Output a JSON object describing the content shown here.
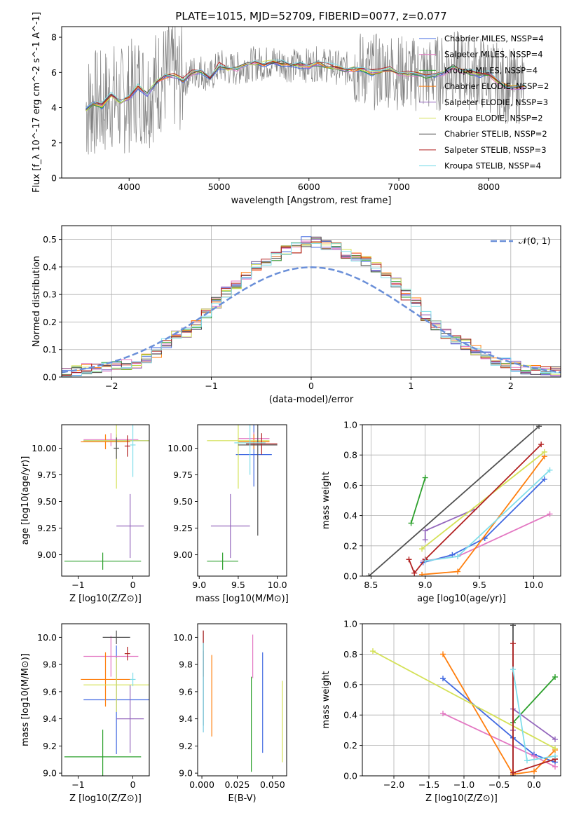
{
  "figure": {
    "title": "PLATE=1015, MJD=52709, FIBERID=0077, z=0.077"
  },
  "legend_entries": [
    {
      "label": "Chabrier MILES, N$_{SSP}$=4",
      "color": "#4169e1"
    },
    {
      "label": "Salpeter MILES, N$_{SSP}$=4",
      "color": "#e377c2"
    },
    {
      "label": "Kroupa MILES, N$_{SSP}$=4",
      "color": "#2ca02c"
    },
    {
      "label": "Chabrier ELODIE, N$_{SSP}$=2",
      "color": "#ff7f0e"
    },
    {
      "label": "Salpeter ELODIE, N$_{SSP}$=3",
      "color": "#9467bd"
    },
    {
      "label": "Kroupa ELODIE, N$_{SSP}$=2",
      "color": "#d4e157"
    },
    {
      "label": "Chabrier STELIB, N$_{SSP}$=2",
      "color": "#505050"
    },
    {
      "label": "Salpeter STELIB, N$_{SSP}$=3",
      "color": "#b22222"
    },
    {
      "label": "Kroupa STELIB, N$_{SSP}$=4",
      "color": "#80deea"
    }
  ],
  "chart_data": [
    {
      "id": "spectrum",
      "type": "line",
      "xlabel": "wavelength [Angstrom, rest frame]",
      "ylabel": "Flux [f_λ 10^-17 erg cm^-2 s^-1 A^-1]",
      "xlim": [
        3250,
        8800
      ],
      "ylim": [
        0,
        8.6
      ],
      "xticks": [
        4000,
        5000,
        6000,
        7000,
        8000
      ],
      "yticks": [
        0,
        2,
        4,
        6,
        8
      ],
      "grid": false,
      "legend_position": "upper right",
      "x": [
        3520,
        3600,
        3700,
        3800,
        3900,
        4000,
        4100,
        4200,
        4300,
        4400,
        4500,
        4600,
        4700,
        4800,
        4900,
        5000,
        5100,
        5200,
        5300,
        5400,
        5500,
        5600,
        5700,
        5800,
        5900,
        6000,
        6100,
        6200,
        6300,
        6400,
        6500,
        6600,
        6700,
        6800,
        6900,
        7000,
        7100,
        7200,
        7300,
        7400,
        7500,
        7600,
        7700,
        7800,
        7900,
        8000,
        8100,
        8200,
        8300,
        8400
      ],
      "model_y": [
        3.9,
        4.3,
        4.1,
        4.7,
        4.3,
        4.6,
        5.2,
        4.7,
        5.4,
        5.8,
        5.8,
        5.5,
        6.0,
        6.1,
        5.7,
        6.4,
        6.2,
        6.2,
        6.4,
        6.5,
        6.5,
        6.6,
        6.5,
        6.4,
        6.4,
        6.4,
        6.5,
        6.4,
        6.3,
        6.2,
        6.2,
        6.2,
        6.0,
        6.1,
        6.2,
        6.0,
        5.9,
        5.9,
        5.8,
        5.9,
        6.0,
        6.3,
        6.1,
        6.0,
        5.9,
        5.9,
        5.5,
        5.2,
        5.2,
        5.2
      ]
    },
    {
      "id": "residuals",
      "type": "histogram",
      "xlabel": "(data-model)/error",
      "ylabel": "Normed distribution",
      "xlim": [
        -2.5,
        2.5
      ],
      "ylim": [
        0,
        0.55
      ],
      "xticks": [
        -2,
        -1,
        0,
        1,
        2
      ],
      "yticks": [
        0.0,
        0.1,
        0.2,
        0.3,
        0.4,
        0.5
      ],
      "grid": true,
      "legend_position": "upper right",
      "reference_label": "𝒩(0, 1)",
      "bin_edges": [
        -2.5,
        -2.4,
        -2.3,
        -2.2,
        -2.1,
        -2.0,
        -1.9,
        -1.8,
        -1.7,
        -1.6,
        -1.5,
        -1.4,
        -1.3,
        -1.2,
        -1.1,
        -1.0,
        -0.9,
        -0.8,
        -0.7,
        -0.6,
        -0.5,
        -0.4,
        -0.3,
        -0.2,
        -0.1,
        0.0,
        0.1,
        0.2,
        0.3,
        0.4,
        0.5,
        0.6,
        0.7,
        0.8,
        0.9,
        1.0,
        1.1,
        1.2,
        1.3,
        1.4,
        1.5,
        1.6,
        1.7,
        1.8,
        1.9,
        2.0,
        2.1,
        2.2,
        2.3,
        2.4,
        2.5
      ],
      "typical_heights": [
        0.02,
        0.025,
        0.03,
        0.035,
        0.04,
        0.045,
        0.045,
        0.05,
        0.07,
        0.09,
        0.12,
        0.15,
        0.16,
        0.19,
        0.23,
        0.27,
        0.31,
        0.33,
        0.36,
        0.4,
        0.42,
        0.44,
        0.46,
        0.47,
        0.49,
        0.49,
        0.48,
        0.47,
        0.45,
        0.44,
        0.42,
        0.4,
        0.37,
        0.34,
        0.3,
        0.27,
        0.22,
        0.19,
        0.16,
        0.14,
        0.12,
        0.1,
        0.08,
        0.06,
        0.05,
        0.04,
        0.03,
        0.025,
        0.02,
        0.02
      ]
    },
    {
      "id": "age-vs-Z",
      "type": "errorbar",
      "xlabel": "Z [log10(Z/Z⊙)]",
      "ylabel": "age  [log10(age/yr)]",
      "xlim": [
        -1.3,
        0.3
      ],
      "ylim": [
        8.8,
        10.22
      ],
      "xticks": [
        -1,
        0
      ],
      "yticks": [
        9.0,
        9.25,
        9.5,
        9.75,
        10.0
      ],
      "grid": false,
      "points": [
        {
          "x": -0.3,
          "y": 10.07,
          "xerr": 0.6,
          "yerr": 0.06,
          "series": "Chabrier MILES"
        },
        {
          "x": -0.4,
          "y": 10.08,
          "xerr": 0.5,
          "yerr": 0.06,
          "series": "Salpeter MILES"
        },
        {
          "x": -0.55,
          "y": 8.94,
          "xerr": 0.7,
          "yerr": 0.08,
          "series": "Kroupa MILES"
        },
        {
          "x": -0.5,
          "y": 10.06,
          "xerr": 0.45,
          "yerr": 0.07,
          "series": "Chabrier ELODIE"
        },
        {
          "x": -0.05,
          "y": 9.27,
          "xerr": 0.25,
          "yerr": 0.3,
          "series": "Salpeter ELODIE"
        },
        {
          "x": -0.3,
          "y": 10.07,
          "xerr": 0.6,
          "yerr": 0.45,
          "series": "Kroupa ELODIE"
        },
        {
          "x": -0.3,
          "y": 10.0,
          "xerr": 0.05,
          "yerr": 0.1,
          "series": "Chabrier STELIB"
        },
        {
          "x": -0.1,
          "y": 10.02,
          "xerr": 0.05,
          "yerr": 0.1,
          "series": "Salpeter STELIB"
        },
        {
          "x": 0.0,
          "y": 10.03,
          "xerr": 0.05,
          "yerr": 0.3,
          "series": "Kroupa STELIB"
        }
      ]
    },
    {
      "id": "age-vs-mass",
      "type": "errorbar",
      "xlabel": "mass [log10(M/M⊙)]",
      "ylabel": "",
      "xlim": [
        8.98,
        10.12
      ],
      "ylim": [
        8.8,
        10.22
      ],
      "xticks": [
        9.0,
        9.5,
        10.0
      ],
      "yticks": [
        9.0,
        9.25,
        9.5,
        9.75,
        10.0
      ],
      "grid": false,
      "points": [
        {
          "x": 9.7,
          "y": 9.94,
          "xerr": 0.23,
          "yerr": 0.3,
          "series": "Chabrier MILES"
        },
        {
          "x": 9.7,
          "y": 10.09,
          "xerr": 0.2,
          "yerr": 0.06,
          "series": "Salpeter MILES"
        },
        {
          "x": 9.3,
          "y": 8.94,
          "xerr": 0.2,
          "yerr": 0.08,
          "series": "Kroupa MILES"
        },
        {
          "x": 9.7,
          "y": 10.06,
          "xerr": 0.2,
          "yerr": 0.07,
          "series": "Chabrier ELODIE"
        },
        {
          "x": 9.4,
          "y": 9.27,
          "xerr": 0.25,
          "yerr": 0.3,
          "series": "Salpeter ELODIE"
        },
        {
          "x": 9.5,
          "y": 10.07,
          "xerr": 0.4,
          "yerr": 0.45,
          "series": "Kroupa ELODIE"
        },
        {
          "x": 9.75,
          "y": 10.03,
          "xerr": 0.25,
          "yerr": 0.85,
          "series": "Chabrier STELIB"
        },
        {
          "x": 9.8,
          "y": 10.04,
          "xerr": 0.2,
          "yerr": 0.1,
          "series": "Salpeter STELIB"
        },
        {
          "x": 9.65,
          "y": 10.05,
          "xerr": 0.2,
          "yerr": 0.3,
          "series": "Kroupa STELIB"
        }
      ]
    },
    {
      "id": "massweight-vs-age",
      "type": "line",
      "xlabel": "age  [log10(age/yr)]",
      "ylabel": "mass weight",
      "xlim": [
        8.42,
        10.25
      ],
      "ylim": [
        0,
        1
      ],
      "xticks": [
        8.5,
        9.0,
        9.5,
        10.0
      ],
      "yticks": [
        0.0,
        0.2,
        0.4,
        0.6,
        0.8,
        1.0
      ],
      "grid": true,
      "series": [
        {
          "name": "Chabrier MILES",
          "x": [
            8.98,
            9.25,
            9.55,
            10.1
          ],
          "y": [
            0.09,
            0.14,
            0.25,
            0.64
          ]
        },
        {
          "name": "Salpeter MILES",
          "x": [
            8.98,
            9.3,
            10.15
          ],
          "y": [
            0.1,
            0.13,
            0.41
          ]
        },
        {
          "name": "Kroupa MILES",
          "x": [
            8.87,
            9.0
          ],
          "y": [
            0.35,
            0.65
          ]
        },
        {
          "name": "Chabrier ELODIE",
          "x": [
            8.97,
            9.3,
            10.1
          ],
          "y": [
            0.01,
            0.03,
            0.79
          ]
        },
        {
          "name": "Salpeter ELODIE",
          "x": [
            9.0,
            9.0,
            9.45
          ],
          "y": [
            0.24,
            0.3,
            0.44
          ]
        },
        {
          "name": "Kroupa ELODIE",
          "x": [
            8.97,
            10.1
          ],
          "y": [
            0.18,
            0.82
          ]
        },
        {
          "name": "Chabrier STELIB",
          "x": [
            8.48,
            10.05
          ],
          "y": [
            0.0,
            0.99
          ]
        },
        {
          "name": "Salpeter STELIB",
          "x": [
            8.85,
            8.9,
            9.0,
            10.07
          ],
          "y": [
            0.11,
            0.02,
            0.11,
            0.87
          ]
        },
        {
          "name": "Kroupa STELIB",
          "x": [
            9.0,
            9.3,
            10.15
          ],
          "y": [
            0.1,
            0.13,
            0.7
          ]
        }
      ]
    },
    {
      "id": "mass-vs-Z",
      "type": "errorbar",
      "xlabel": "Z [log10(Z/Z⊙)]",
      "ylabel": "mass [log10(M/M⊙)]",
      "xlim": [
        -1.3,
        0.3
      ],
      "ylim": [
        8.98,
        10.1
      ],
      "xticks": [
        -1,
        0
      ],
      "yticks": [
        9.0,
        9.2,
        9.4,
        9.6,
        9.8,
        10.0
      ],
      "grid": false,
      "points": [
        {
          "x": -0.3,
          "y": 9.54,
          "xerr": 0.6,
          "yerr": 0.4,
          "series": "Chabrier MILES"
        },
        {
          "x": -0.4,
          "y": 9.86,
          "xerr": 0.5,
          "yerr": 0.15,
          "series": "Salpeter MILES"
        },
        {
          "x": -0.55,
          "y": 9.12,
          "xerr": 0.7,
          "yerr": 0.2,
          "series": "Kroupa MILES"
        },
        {
          "x": -0.5,
          "y": 9.69,
          "xerr": 0.45,
          "yerr": 0.2,
          "series": "Chabrier ELODIE"
        },
        {
          "x": -0.05,
          "y": 9.4,
          "xerr": 0.25,
          "yerr": 0.25,
          "series": "Salpeter ELODIE"
        },
        {
          "x": -0.3,
          "y": 9.65,
          "xerr": 0.6,
          "yerr": 0.2,
          "series": "Kroupa ELODIE"
        },
        {
          "x": -0.3,
          "y": 10.0,
          "xerr": 0.25,
          "yerr": 0.05,
          "series": "Chabrier STELIB"
        },
        {
          "x": -0.1,
          "y": 9.88,
          "xerr": 0.05,
          "yerr": 0.05,
          "series": "Salpeter STELIB"
        },
        {
          "x": 0.0,
          "y": 9.69,
          "xerr": 0.05,
          "yerr": 0.05,
          "series": "Kroupa STELIB"
        }
      ]
    },
    {
      "id": "mass-vs-ebv",
      "type": "errorbar",
      "xlabel": "E(B-V)",
      "ylabel": "",
      "xlim": [
        -0.003,
        0.06
      ],
      "ylim": [
        8.98,
        10.1
      ],
      "xticks": [
        0.0,
        0.025,
        0.05
      ],
      "yticks": [
        9.0,
        9.2,
        9.4,
        9.6,
        9.8,
        10.0
      ],
      "grid": false,
      "points": [
        {
          "x": 0.043,
          "y": 9.52,
          "xerr": 0.0,
          "yerr": 0.37,
          "series": "Chabrier MILES"
        },
        {
          "x": 0.036,
          "y": 9.86,
          "xerr": 0.0,
          "yerr": 0.16,
          "series": "Salpeter MILES"
        },
        {
          "x": 0.035,
          "y": 9.36,
          "xerr": 0.0,
          "yerr": 0.35,
          "series": "Kroupa MILES"
        },
        {
          "x": 0.007,
          "y": 9.57,
          "xerr": 0.0,
          "yerr": 0.3,
          "series": "Chabrier ELODIE"
        },
        {
          "x": 0.001,
          "y": 9.6,
          "xerr": 0.0,
          "yerr": 0.3,
          "series": "Salpeter ELODIE"
        },
        {
          "x": 0.057,
          "y": 9.38,
          "xerr": 0.0,
          "yerr": 0.3,
          "series": "Kroupa ELODIE"
        },
        {
          "x": 0.001,
          "y": 9.7,
          "xerr": 0.0,
          "yerr": 0.35,
          "series": "Chabrier STELIB"
        },
        {
          "x": 0.001,
          "y": 9.88,
          "xerr": 0.0,
          "yerr": 0.17,
          "series": "Salpeter STELIB"
        },
        {
          "x": 0.001,
          "y": 9.63,
          "xerr": 0.0,
          "yerr": 0.33,
          "series": "Kroupa STELIB"
        }
      ]
    },
    {
      "id": "massweight-vs-Z",
      "type": "line",
      "xlabel": "Z [log10(Z/Z⊙)]",
      "ylabel": "mass weight",
      "xlim": [
        -2.45,
        0.38
      ],
      "ylim": [
        0,
        1
      ],
      "xticks": [
        -2.0,
        -1.5,
        -1.0,
        -0.5,
        0.0
      ],
      "yticks": [
        0.0,
        0.2,
        0.4,
        0.6,
        0.8,
        1.0
      ],
      "grid": true,
      "series": [
        {
          "name": "Chabrier MILES",
          "x": [
            -1.3,
            -0.3,
            0.0,
            0.3
          ],
          "y": [
            0.64,
            0.25,
            0.14,
            0.09
          ]
        },
        {
          "name": "Salpeter MILES",
          "x": [
            -1.3,
            0.0,
            0.3
          ],
          "y": [
            0.41,
            0.13,
            0.06
          ]
        },
        {
          "name": "Kroupa MILES",
          "x": [
            -0.3,
            0.3
          ],
          "y": [
            0.35,
            0.65
          ]
        },
        {
          "name": "Chabrier ELODIE",
          "x": [
            -1.3,
            -0.3,
            0.0,
            0.3
          ],
          "y": [
            0.8,
            0.01,
            0.03,
            0.17
          ]
        },
        {
          "name": "Salpeter ELODIE",
          "x": [
            -0.3,
            -0.3,
            0.3
          ],
          "y": [
            0.3,
            0.44,
            0.24
          ]
        },
        {
          "name": "Kroupa ELODIE",
          "x": [
            -2.3,
            0.3
          ],
          "y": [
            0.82,
            0.18
          ]
        },
        {
          "name": "Chabrier STELIB",
          "x": [
            -0.3,
            -0.3
          ],
          "y": [
            0.0,
            0.99
          ]
        },
        {
          "name": "Salpeter STELIB",
          "x": [
            -0.3,
            -0.3,
            0.3,
            0.3
          ],
          "y": [
            0.87,
            0.02,
            0.11,
            0.11
          ]
        },
        {
          "name": "Kroupa STELIB",
          "x": [
            -0.3,
            -0.1,
            0.3
          ],
          "y": [
            0.7,
            0.1,
            0.13
          ]
        }
      ]
    }
  ]
}
